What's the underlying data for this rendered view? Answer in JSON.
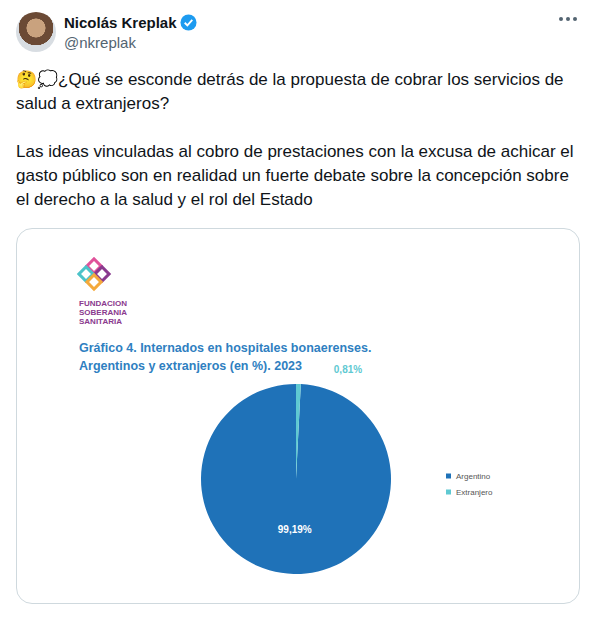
{
  "tweet": {
    "author": "Nicolás Kreplak",
    "handle": "@nkreplak",
    "paragraphs": [
      "🤔💭¿Qué se esconde detrás de la propuesta de cobrar los servicios de salud a extranjeros?",
      "Las ideas vinculadas al cobro de prestaciones con la excusa de achicar el gasto público son en realidad un fuerte debate sobre la concepción sobre el derecho a la salud y el rol del Estado"
    ]
  },
  "logo": [
    "FUNDACION",
    "SOBERANIA",
    "SANITARIA"
  ],
  "chart_data": {
    "type": "pie",
    "title": "Gráfico 4. Internados en hospitales bonaerenses. Argentinos y extranjeros (en %). 2023",
    "categories": [
      "Argentino",
      "Extranjero"
    ],
    "values": [
      99.19,
      0.81
    ],
    "value_labels": [
      "99,19%",
      "0,81%"
    ],
    "colors": [
      "#1f72b8",
      "#5fc9d2"
    ],
    "legend": "right",
    "data_labels": true
  }
}
